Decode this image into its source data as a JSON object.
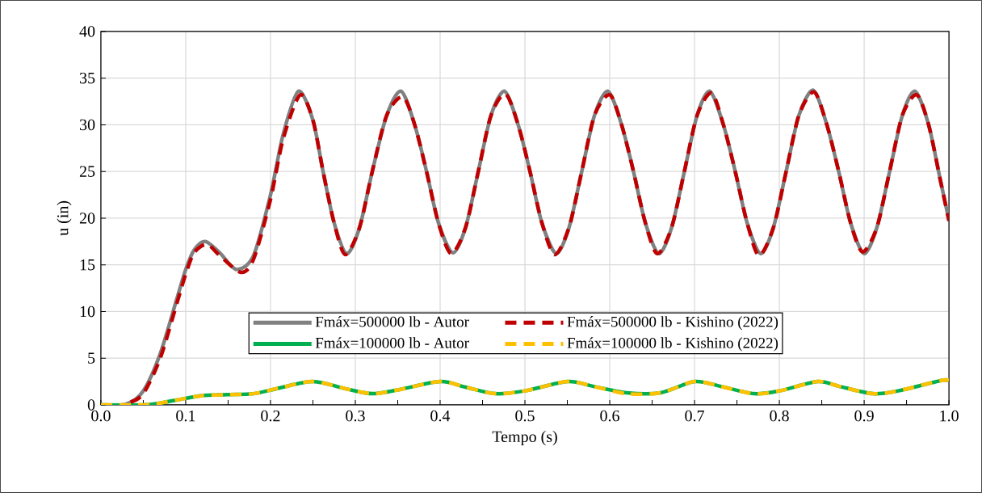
{
  "chart_data": {
    "type": "line",
    "xlabel": "Tempo (s)",
    "ylabel": "u (in)",
    "xlim": [
      0,
      1
    ],
    "ylim": [
      0,
      40
    ],
    "xticks": [
      {
        "value": 0,
        "label": "0.0"
      },
      {
        "value": 0.05,
        "label": null
      },
      0.1,
      {
        "value": 0.15,
        "label": null
      },
      0.2,
      {
        "value": 0.25,
        "label": null
      },
      0.3,
      {
        "value": 0.35,
        "label": null
      },
      0.4,
      {
        "value": 0.45,
        "label": null
      },
      0.5,
      {
        "value": 0.55,
        "label": null
      },
      0.6,
      {
        "value": 0.65,
        "label": null
      },
      0.7,
      {
        "value": 0.75,
        "label": null
      },
      0.8,
      {
        "value": 0.85,
        "label": null
      },
      0.9,
      {
        "value": 0.95,
        "label": null
      },
      {
        "value": 1,
        "label": "1.0"
      }
    ],
    "yticks": [
      0,
      5,
      10,
      15,
      20,
      25,
      30,
      35,
      40
    ],
    "grid": true,
    "legend": "bottom right",
    "marker": "none",
    "series": [
      {
        "name": "Fmáx=500000 lb - Autor",
        "color": "#808080",
        "line_style": "solid",
        "x": [
          0,
          0.03,
          0.05,
          0.07,
          0.09,
          0.1,
          0.11,
          0.123,
          0.14,
          0.16,
          0.18,
          0.2,
          0.215,
          0.233,
          0.25,
          0.262,
          0.275,
          0.29,
          0.305,
          0.32,
          0.337,
          0.354,
          0.37,
          0.384,
          0.398,
          0.415,
          0.43,
          0.445,
          0.46,
          0.476,
          0.492,
          0.506,
          0.52,
          0.537,
          0.552,
          0.567,
          0.582,
          0.598,
          0.614,
          0.628,
          0.642,
          0.658,
          0.673,
          0.688,
          0.703,
          0.718,
          0.734,
          0.748,
          0.762,
          0.778,
          0.793,
          0.808,
          0.823,
          0.84,
          0.856,
          0.87,
          0.884,
          0.9,
          0.915,
          0.93,
          0.945,
          0.96,
          0.976,
          0.99,
          1.0
        ],
        "values": [
          0,
          0.1,
          1.5,
          5.5,
          11.5,
          14.5,
          16.6,
          17.5,
          16.3,
          14.5,
          16,
          22.5,
          29,
          33.6,
          30.5,
          25,
          19.5,
          16.2,
          19,
          25,
          31,
          33.6,
          30,
          25,
          19.5,
          16.3,
          19,
          25,
          31,
          33.6,
          30,
          25,
          19.5,
          16.2,
          19,
          25,
          31,
          33.6,
          30,
          25,
          19.5,
          16.2,
          19,
          25,
          31,
          33.6,
          30,
          25,
          19.5,
          16.2,
          19,
          25,
          31,
          33.7,
          30,
          25,
          19.5,
          16.2,
          19,
          25,
          31,
          33.6,
          30,
          24,
          19.8
        ]
      },
      {
        "name": "Fmáx=500000 lb - Kishino (2022)",
        "color": "#c00000",
        "line_style": "dashed",
        "x": [
          0.035,
          0.05,
          0.07,
          0.09,
          0.1,
          0.11,
          0.125,
          0.14,
          0.165,
          0.18,
          0.2,
          0.215,
          0.235,
          0.25,
          0.262,
          0.275,
          0.288,
          0.305,
          0.32,
          0.337,
          0.356,
          0.37,
          0.384,
          0.398,
          0.413,
          0.43,
          0.445,
          0.46,
          0.477,
          0.492,
          0.506,
          0.52,
          0.535,
          0.552,
          0.567,
          0.582,
          0.6,
          0.614,
          0.628,
          0.642,
          0.656,
          0.673,
          0.688,
          0.703,
          0.72,
          0.734,
          0.748,
          0.762,
          0.776,
          0.793,
          0.808,
          0.823,
          0.841,
          0.856,
          0.87,
          0.884,
          0.898,
          0.915,
          0.93,
          0.945,
          0.962,
          0.976,
          0.99,
          1.0
        ],
        "values": [
          0.3,
          1.2,
          5,
          11,
          14,
          16.3,
          17.2,
          16,
          14.2,
          15.6,
          22,
          28.5,
          33.2,
          30.5,
          25,
          19.5,
          16.1,
          19,
          25,
          31,
          33.0,
          30,
          25,
          19.5,
          16.2,
          19,
          25,
          31,
          33.3,
          30,
          25,
          19.5,
          16.1,
          19,
          25,
          31,
          33.2,
          30,
          25,
          19.5,
          16.2,
          19,
          25,
          31,
          33.4,
          30,
          25,
          19.5,
          16.0,
          19,
          25,
          31,
          33.5,
          30,
          25,
          19.5,
          16.4,
          19,
          25,
          31,
          33.2,
          30,
          24,
          19.7
        ]
      },
      {
        "name": "Fmáx=100000 lb - Autor",
        "color": "#00b050",
        "line_style": "solid",
        "x": [
          0,
          0.05,
          0.07,
          0.1,
          0.12,
          0.15,
          0.18,
          0.21,
          0.25,
          0.29,
          0.32,
          0.35,
          0.4,
          0.43,
          0.465,
          0.5,
          0.55,
          0.58,
          0.62,
          0.66,
          0.7,
          0.73,
          0.77,
          0.8,
          0.845,
          0.87,
          0.91,
          0.94,
          0.99,
          1.0
        ],
        "values": [
          0,
          0,
          0.2,
          0.7,
          1.0,
          1.1,
          1.2,
          1.8,
          2.5,
          1.7,
          1.2,
          1.6,
          2.5,
          1.9,
          1.2,
          1.5,
          2.5,
          2.0,
          1.3,
          1.3,
          2.5,
          2.0,
          1.2,
          1.5,
          2.5,
          2.0,
          1.2,
          1.5,
          2.6,
          2.6
        ]
      },
      {
        "name": "Fmáx=100000 lb - Kishino (2022)",
        "color": "#ffc000",
        "line_style": "dashed",
        "x": [
          0,
          0.05,
          0.07,
          0.1,
          0.12,
          0.15,
          0.18,
          0.21,
          0.25,
          0.29,
          0.32,
          0.35,
          0.4,
          0.43,
          0.465,
          0.5,
          0.55,
          0.58,
          0.62,
          0.66,
          0.7,
          0.73,
          0.77,
          0.8,
          0.845,
          0.87,
          0.91,
          0.94,
          0.99,
          1.0
        ],
        "values": [
          0,
          0,
          0.2,
          0.7,
          1.0,
          1.1,
          1.2,
          1.8,
          2.5,
          1.7,
          1.2,
          1.6,
          2.5,
          1.9,
          1.2,
          1.5,
          2.5,
          2.0,
          1.2,
          1.3,
          2.5,
          2.0,
          1.2,
          1.5,
          2.5,
          2.0,
          1.2,
          1.5,
          2.6,
          2.6
        ]
      }
    ]
  }
}
